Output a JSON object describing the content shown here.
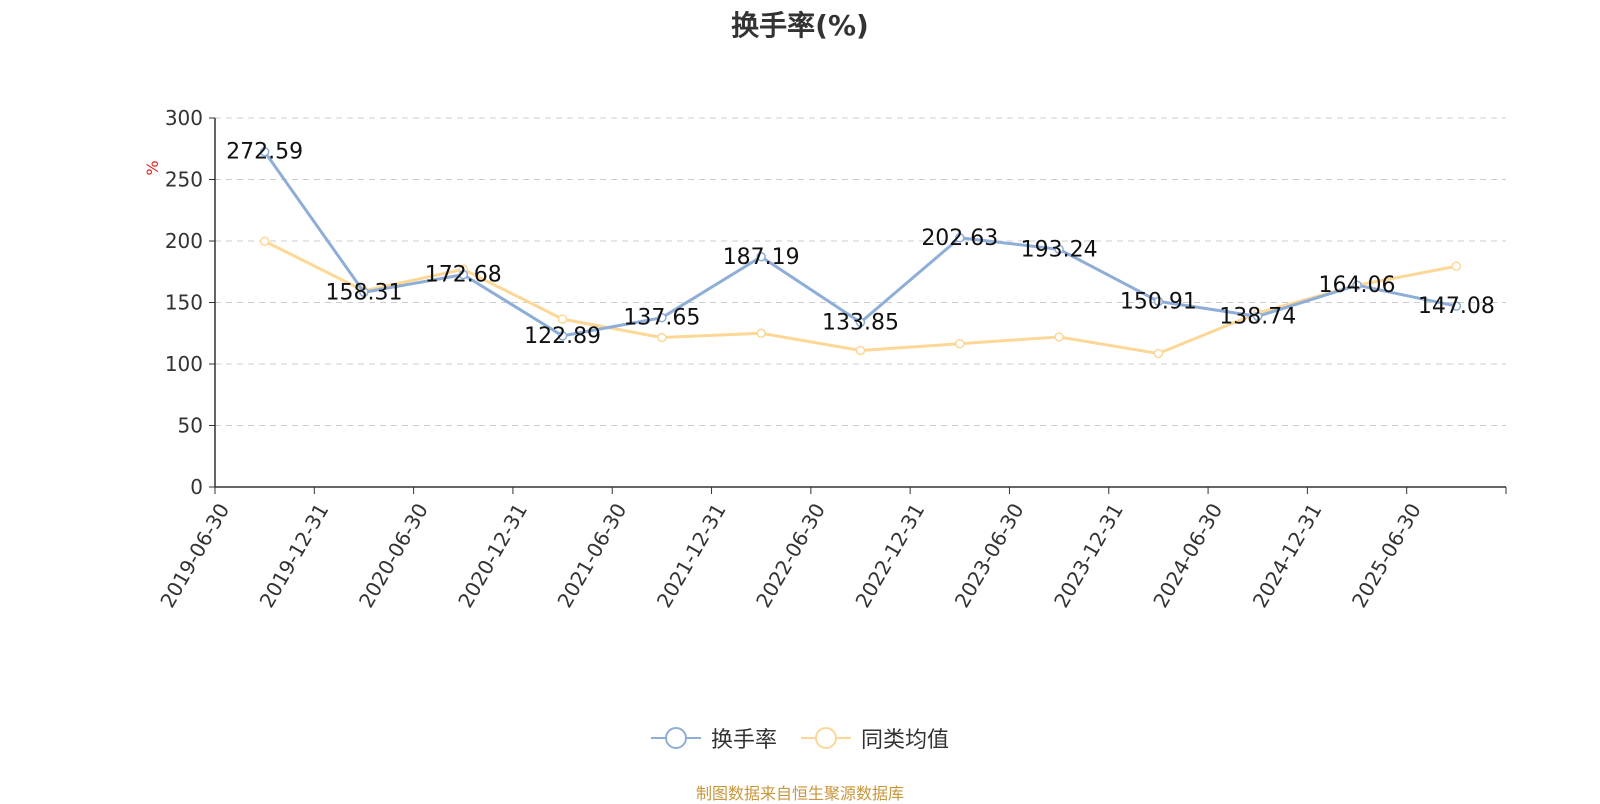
{
  "chart_data": {
    "type": "line",
    "title": "换手率(%)",
    "ylabel": "%",
    "xlabel": "",
    "ylim": [
      0,
      300
    ],
    "yticks": [
      0,
      50,
      100,
      150,
      200,
      250,
      300
    ],
    "grid": true,
    "legend_position": "bottom-center",
    "categories": [
      "2019-06-30",
      "2019-12-31",
      "2020-06-30",
      "2020-12-31",
      "2021-06-30",
      "2021-12-31",
      "2022-06-30",
      "2022-12-31",
      "2023-06-30",
      "2023-12-31",
      "2024-06-30",
      "2024-12-31",
      "2025-06-30"
    ],
    "series": [
      {
        "name": "换手率",
        "color": "#8eaed8",
        "values": [
          272.59,
          158.31,
          172.68,
          122.89,
          137.65,
          187.19,
          133.85,
          202.63,
          193.24,
          150.91,
          138.74,
          164.06,
          147.08
        ],
        "labels": [
          "272.59",
          "158.31",
          "172.68",
          "122.89",
          "137.65",
          "187.19",
          "133.85",
          "202.63",
          "193.24",
          "150.91",
          "138.74",
          "164.06",
          "147.08"
        ]
      },
      {
        "name": "同类均值",
        "color": "#fcd796",
        "values": [
          199.8,
          159.5,
          177.0,
          136.5,
          121.5,
          125.0,
          111.0,
          116.5,
          122.0,
          108.5,
          141.5,
          164.0,
          179.5
        ]
      }
    ]
  },
  "source_note": "制图数据来自恒生聚源数据库"
}
